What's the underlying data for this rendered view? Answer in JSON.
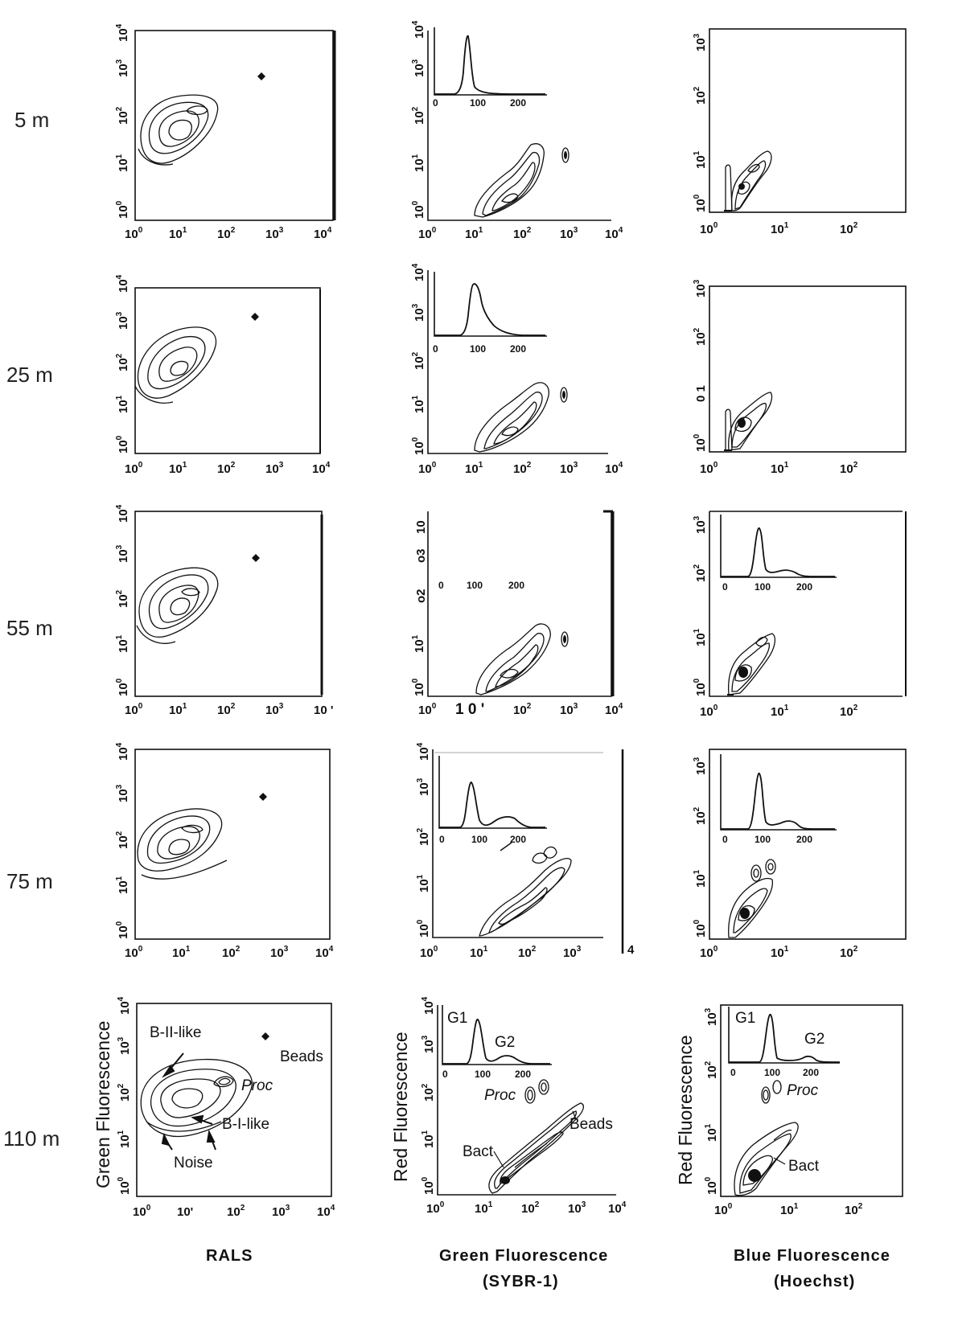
{
  "depth_labels": [
    "5 m",
    "25 m",
    "55 m",
    "75 m",
    "110 m"
  ],
  "columns": [
    {
      "id": "rals",
      "xlabel": "RALS",
      "ylabel": "Green Fluorescence",
      "x_ticks": [
        "10^0",
        "10^1",
        "10^2",
        "10^3",
        "10^4"
      ],
      "y_ticks": [
        "10^0",
        "10^1",
        "10^2",
        "10^3",
        "10^4"
      ]
    },
    {
      "id": "green",
      "xlabel": "Green Fluorescence",
      "xlabel2": "(SYBR-1)",
      "ylabel": "Red Fluorescence",
      "x_ticks": [
        "10^0",
        "10^1",
        "10^2",
        "10^3",
        "10^4"
      ],
      "y_ticks": [
        "10^0",
        "10^1",
        "10^2",
        "10^3",
        "10^4"
      ]
    },
    {
      "id": "blue",
      "xlabel": "Blue Fluorescence",
      "xlabel2": "(Hoechst)",
      "ylabel": "Red Fluorescence",
      "x_ticks": [
        "10^0",
        "10^1",
        "10^2"
      ],
      "y_ticks": [
        "10^0",
        "10^1",
        "10^2",
        "10^3"
      ]
    }
  ],
  "inset_ticks": [
    "0",
    "100",
    "200"
  ],
  "annotations": {
    "rals_110": [
      "B-II-like",
      "Beads",
      "Proc",
      "B-I-like",
      "Noise"
    ],
    "green_110": [
      "G1",
      "G2",
      "Proc",
      "Beads",
      "Bact"
    ],
    "blue_110": [
      "G1",
      "G2",
      "Proc",
      "Bact"
    ]
  },
  "artifacts": {
    "green_55_top": "10",
    "green_55_xtick": "1 0 '",
    "rals_55_xtick": "10 '",
    "green_75_side": "4",
    "blue_25_ytick": "0 1"
  },
  "colors": {
    "ink": "#111111",
    "background": "#ffffff"
  }
}
